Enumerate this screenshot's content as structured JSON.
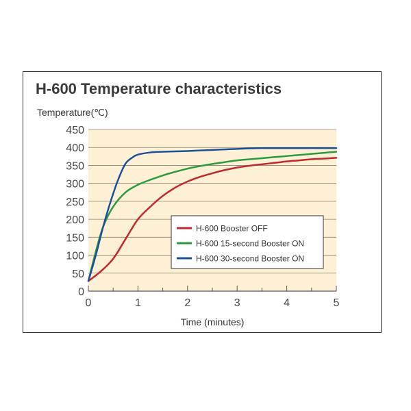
{
  "chart_data": {
    "type": "line",
    "title": "H-600 Temperature characteristics",
    "xlabel": "Time (minutes)",
    "ylabel": "Temperature(℃)",
    "xlim": [
      0,
      5
    ],
    "ylim": [
      0,
      450
    ],
    "x_ticks": [
      "0",
      "1",
      "2",
      "3",
      "4",
      "5"
    ],
    "y_ticks": [
      "0",
      "50",
      "100",
      "150",
      "200",
      "250",
      "300",
      "350",
      "400",
      "450"
    ],
    "grid": "horizontal",
    "legend_position": "inside-bottom-right",
    "plot_background": "#fdf0d5",
    "series": [
      {
        "name": "H-600 Booster OFF",
        "color": "#c0282d",
        "points": [
          [
            0,
            28
          ],
          [
            0.25,
            55
          ],
          [
            0.5,
            90
          ],
          [
            0.75,
            145
          ],
          [
            1,
            200
          ],
          [
            1.25,
            235
          ],
          [
            1.5,
            265
          ],
          [
            1.75,
            288
          ],
          [
            2,
            305
          ],
          [
            2.25,
            318
          ],
          [
            2.5,
            328
          ],
          [
            2.75,
            337
          ],
          [
            3,
            344
          ],
          [
            3.25,
            349
          ],
          [
            3.5,
            353
          ],
          [
            3.75,
            357
          ],
          [
            4,
            361
          ],
          [
            4.25,
            364
          ],
          [
            4.5,
            367
          ],
          [
            4.75,
            369
          ],
          [
            5,
            371
          ]
        ]
      },
      {
        "name": "H-600 15-second Booster ON",
        "color": "#2a9a3c",
        "points": [
          [
            0,
            28
          ],
          [
            0.15,
            110
          ],
          [
            0.3,
            180
          ],
          [
            0.5,
            235
          ],
          [
            0.75,
            275
          ],
          [
            1,
            296
          ],
          [
            1.25,
            310
          ],
          [
            1.5,
            322
          ],
          [
            1.75,
            332
          ],
          [
            2,
            341
          ],
          [
            2.25,
            348
          ],
          [
            2.5,
            354
          ],
          [
            2.75,
            359
          ],
          [
            3,
            364
          ],
          [
            3.25,
            367
          ],
          [
            3.5,
            370
          ],
          [
            3.75,
            373
          ],
          [
            4,
            376
          ],
          [
            4.25,
            379
          ],
          [
            4.5,
            382
          ],
          [
            4.75,
            385
          ],
          [
            5,
            388
          ]
        ]
      },
      {
        "name": "H-600 30-second Booster ON",
        "color": "#1b4f9c",
        "points": [
          [
            0,
            28
          ],
          [
            0.15,
            100
          ],
          [
            0.3,
            180
          ],
          [
            0.45,
            250
          ],
          [
            0.6,
            310
          ],
          [
            0.75,
            355
          ],
          [
            0.9,
            373
          ],
          [
            1,
            380
          ],
          [
            1.25,
            386
          ],
          [
            1.5,
            388
          ],
          [
            2,
            390
          ],
          [
            2.5,
            393
          ],
          [
            3,
            396
          ],
          [
            3.5,
            398
          ],
          [
            4,
            398
          ],
          [
            4.5,
            398
          ],
          [
            5,
            398
          ]
        ]
      }
    ]
  }
}
